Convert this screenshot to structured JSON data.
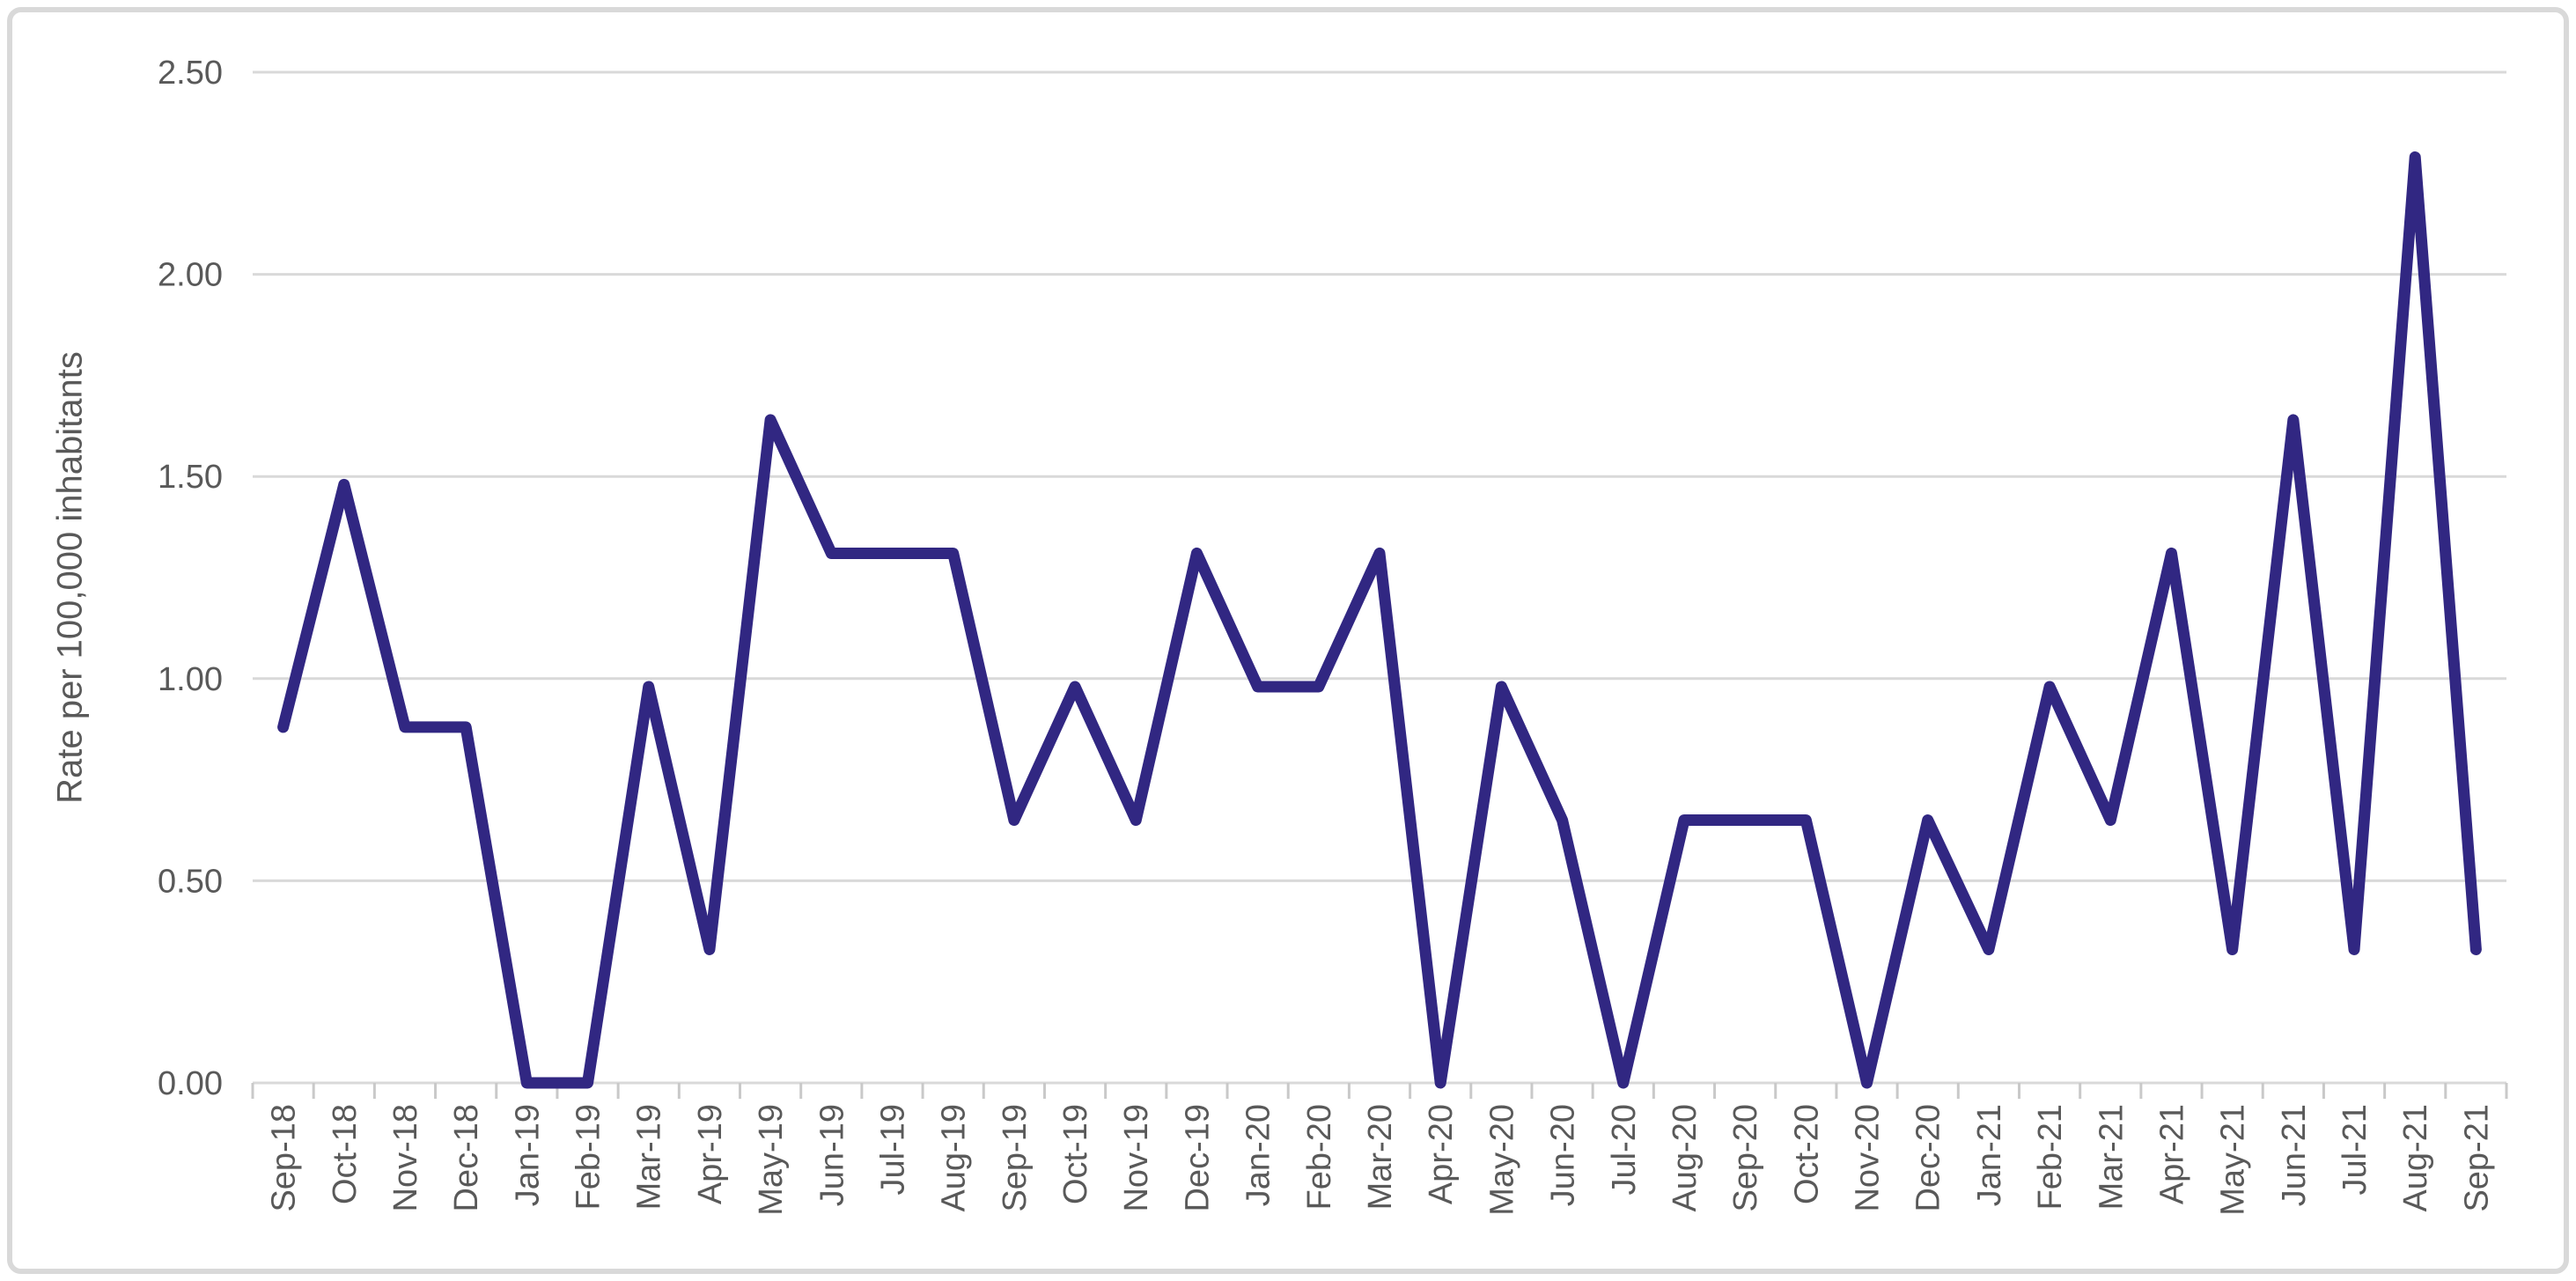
{
  "chart_data": {
    "type": "line",
    "title": "",
    "ylabel": "Rate per 100,000 inhabitants",
    "xlabel": "",
    "ylim": [
      0,
      2.5
    ],
    "y_tick_step": 0.5,
    "y_tick_labels": [
      "0.00",
      "0.50",
      "1.00",
      "1.50",
      "2.00",
      "2.50"
    ],
    "grid": true,
    "legend_position": "none",
    "categories": [
      "Sep-18",
      "Oct-18",
      "Nov-18",
      "Dec-18",
      "Jan-19",
      "Feb-19",
      "Mar-19",
      "Apr-19",
      "May-19",
      "Jun-19",
      "Jul-19",
      "Aug-19",
      "Sep-19",
      "Oct-19",
      "Nov-19",
      "Dec-19",
      "Jan-20",
      "Feb-20",
      "Mar-20",
      "Apr-20",
      "May-20",
      "Jun-20",
      "Jul-20",
      "Aug-20",
      "Sep-20",
      "Oct-20",
      "Nov-20",
      "Dec-20",
      "Jan-21",
      "Feb-21",
      "Mar-21",
      "Apr-21",
      "May-21",
      "Jun-21",
      "Jul-21",
      "Aug-21",
      "Sep-21"
    ],
    "series": [
      {
        "name": "Rate per 100,000 inhabitants",
        "values": [
          0.88,
          1.48,
          0.88,
          0.88,
          0.0,
          0.0,
          0.98,
          0.33,
          1.64,
          1.31,
          1.31,
          1.31,
          0.65,
          0.98,
          0.65,
          1.31,
          0.98,
          0.98,
          1.31,
          0.0,
          0.98,
          0.65,
          0.0,
          0.65,
          0.65,
          0.65,
          0.0,
          0.65,
          0.33,
          0.98,
          0.65,
          1.31,
          0.33,
          1.64,
          0.33,
          2.29,
          0.33
        ]
      }
    ],
    "colors": {
      "line": "#312782",
      "gridline": "#d9d9d9",
      "axis_line": "#d9d9d9",
      "tick_mark": "#c9c9c9",
      "label_text": "#595959",
      "frame_border": "#d9d9d9",
      "background": "#ffffff"
    }
  }
}
